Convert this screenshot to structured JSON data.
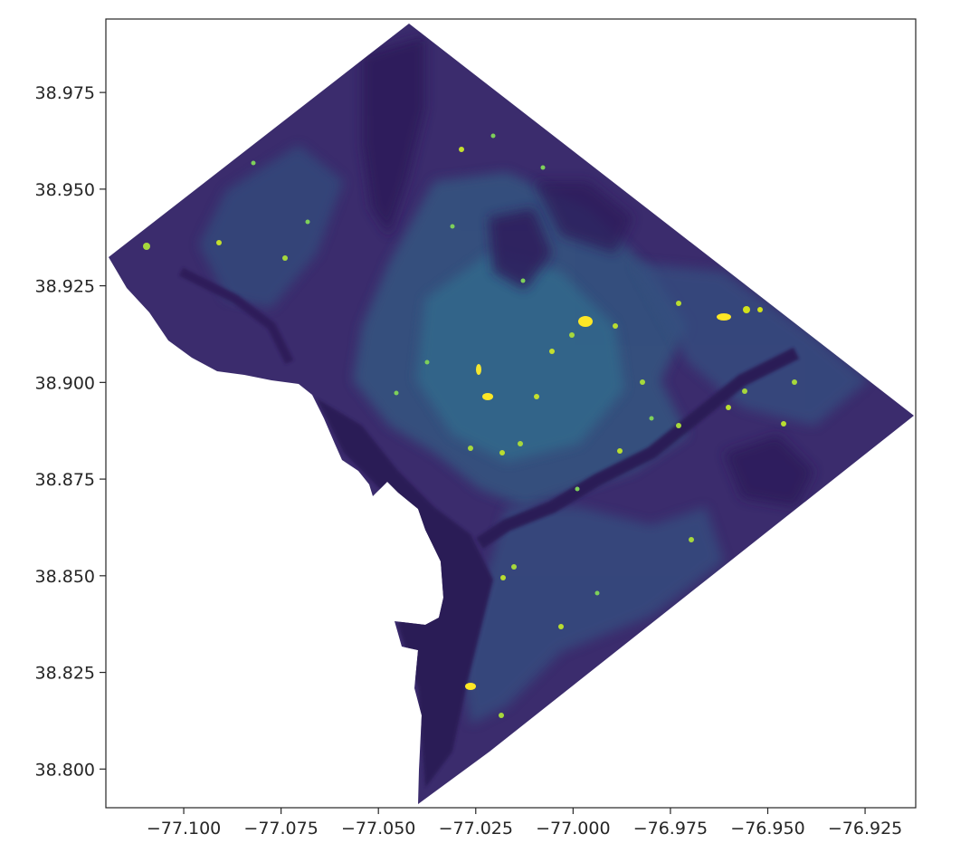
{
  "map": {
    "kind": "raster heatmap over a boundary polygon",
    "colormap": "viridis",
    "colors": {
      "low": "#3b2c6d",
      "mid_low": "#31568b",
      "mid": "#2a848e",
      "mid_high": "#3ec06e",
      "high": "#fde725",
      "background": "#ffffff",
      "axes_edge": "#262626"
    },
    "xlim": [
      -77.12,
      -76.912
    ],
    "ylim": [
      38.79,
      38.994
    ],
    "x_ticks": [
      {
        "value": -77.1,
        "label": "−77.100"
      },
      {
        "value": -77.075,
        "label": "−77.075"
      },
      {
        "value": -77.05,
        "label": "−77.050"
      },
      {
        "value": -77.025,
        "label": "−77.025"
      },
      {
        "value": -77.0,
        "label": "−77.000"
      },
      {
        "value": -76.975,
        "label": "−76.975"
      },
      {
        "value": -76.95,
        "label": "−76.950"
      },
      {
        "value": -76.925,
        "label": "−76.925"
      }
    ],
    "y_ticks": [
      {
        "value": 38.975,
        "label": "38.975"
      },
      {
        "value": 38.95,
        "label": "38.950"
      },
      {
        "value": 38.925,
        "label": "38.925"
      },
      {
        "value": 38.9,
        "label": "38.900"
      },
      {
        "value": 38.875,
        "label": "38.875"
      },
      {
        "value": 38.85,
        "label": "38.850"
      },
      {
        "value": 38.825,
        "label": "38.825"
      },
      {
        "value": 38.8,
        "label": "38.800"
      }
    ],
    "grid": false,
    "legend": "none"
  }
}
